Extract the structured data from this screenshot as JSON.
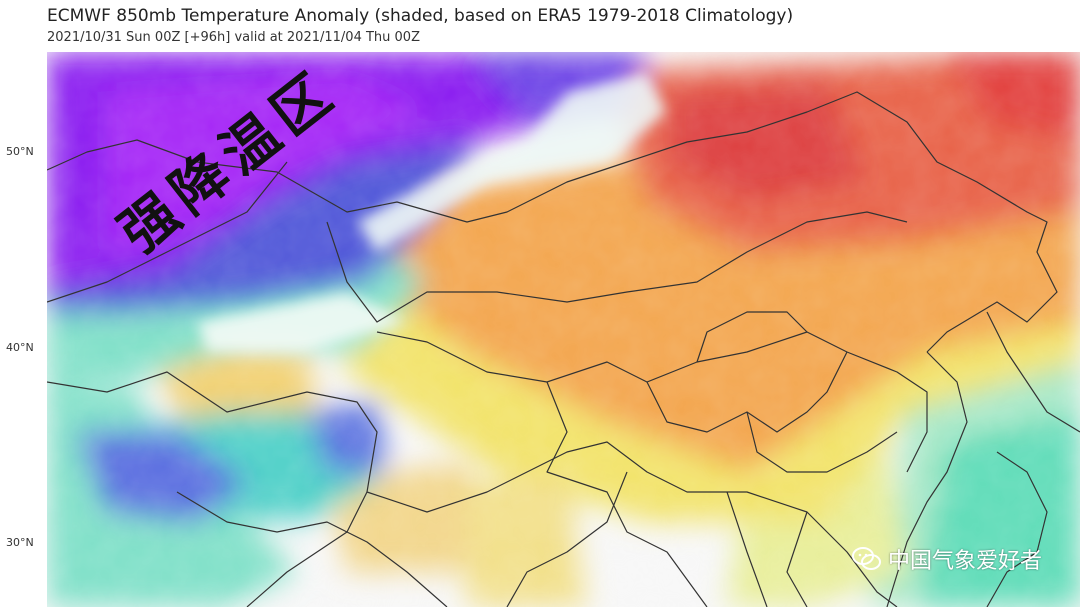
{
  "header": {
    "title": "ECMWF 850mb Temperature Anomaly (shaded, based on ERA5 1979-2018 Climatology)",
    "subtitle": "2021/10/31 Sun 00Z [+96h] valid at 2021/11/04 Thu 00Z"
  },
  "axis": {
    "lat_labels": [
      "50°N",
      "40°N",
      "30°N"
    ]
  },
  "annotation": {
    "text": "强降温区"
  },
  "watermark": {
    "text": "中国气象爱好者"
  },
  "palette": {
    "cold_deep": "#8a1ff0",
    "cold_blue": "#4f57d8",
    "cool_teal": "#4fd6c8",
    "neutral": "#f7f7f7",
    "warm_yellow": "#f2e36a",
    "warm_orange": "#f3a64f",
    "hot_red": "#e84e45"
  }
}
